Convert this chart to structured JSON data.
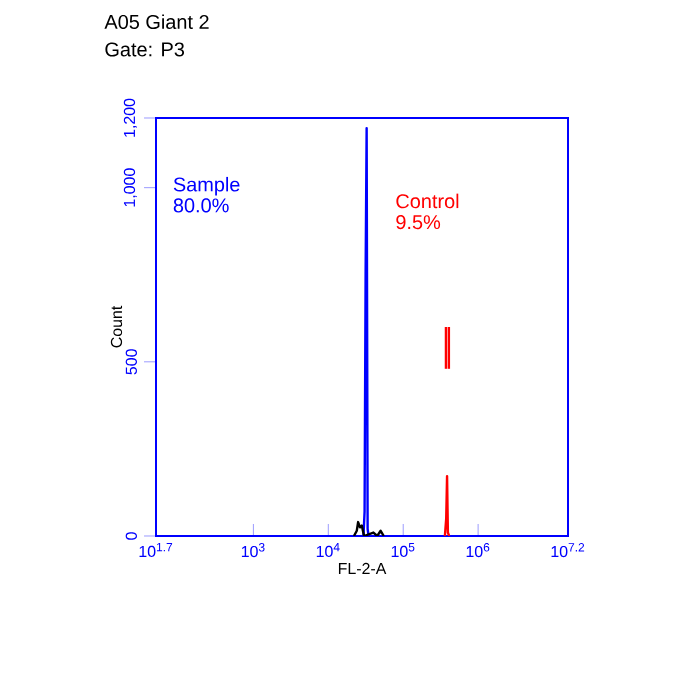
{
  "chart_data": {
    "type": "line",
    "title": "A05 Giant 2",
    "subtitle": "Gate: P3",
    "xlabel": "FL-2-A",
    "ylabel": "Count",
    "log": "x",
    "legend": "top left",
    "grid": false,
    "xlim": [
      50.12,
      15848932
    ],
    "ylim": [
      0,
      1200
    ],
    "xticks": [
      {
        "value": 50.12,
        "label": "10$^{1.7}$"
      },
      {
        "value": 1000,
        "label": "10$^{3}$"
      },
      {
        "value": 10000,
        "label": "10$^{4}$"
      },
      {
        "value": 100000,
        "label": "10$^{5}$"
      },
      {
        "value": 1000000,
        "label": "10$^{6}$"
      },
      {
        "value": 15848932,
        "label": "10$^{7.2}$"
      }
    ],
    "yticks": [
      0,
      500,
      {
        "value": 1000,
        "label": "1,000"
      },
      {
        "value": 1200,
        "label": "1,200"
      }
    ],
    "annotations": [
      "80.0%",
      "9.5%"
    ],
    "series": [
      {
        "name": "Sample",
        "color": "#0000ff",
        "x": [
          29500,
          30500,
          31500,
          32500,
          33500,
          34500
        ],
        "values": [
          0,
          70,
          760,
          1171,
          20,
          0
        ]
      },
      {
        "name": "Control",
        "color": "#ff0000",
        "x": [
          360000,
          375000,
          385000,
          395000,
          410000
        ],
        "values": [
          0,
          50,
          172,
          10,
          0
        ]
      },
      {
        "color": "#ff0000",
        "x": [
          372000,
          372000
        ],
        "values": [
          480,
          600
        ]
      },
      {
        "color": "#ff0000",
        "x": [
          407000,
          407000
        ],
        "values": [
          480,
          600
        ]
      },
      {
        "color": "#000000",
        "x": [
          22000,
          24000,
          25000,
          26500,
          28000,
          30000,
          40000,
          45000,
          50000,
          55000
        ],
        "values": [
          0,
          15,
          40,
          25,
          30,
          0,
          10,
          0,
          15,
          0
        ]
      }
    ]
  }
}
